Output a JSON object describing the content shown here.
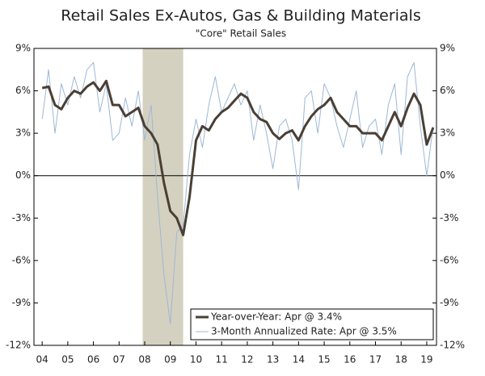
{
  "chart_data": {
    "type": "line",
    "title": "Retail Sales Ex-Autos, Gas & Building Materials",
    "subtitle": "\"Core\" Retail Sales",
    "x": [
      2004,
      2004.25,
      2004.5,
      2004.75,
      2005,
      2005.25,
      2005.5,
      2005.75,
      2006,
      2006.25,
      2006.5,
      2006.75,
      2007,
      2007.25,
      2007.5,
      2007.75,
      2008,
      2008.25,
      2008.5,
      2008.75,
      2009,
      2009.25,
      2009.5,
      2009.75,
      2010,
      2010.25,
      2010.5,
      2010.75,
      2011,
      2011.25,
      2011.5,
      2011.75,
      2012,
      2012.25,
      2012.5,
      2012.75,
      2013,
      2013.25,
      2013.5,
      2013.75,
      2014,
      2014.25,
      2014.5,
      2014.75,
      2015,
      2015.25,
      2015.5,
      2015.75,
      2016,
      2016.25,
      2016.5,
      2016.75,
      2017,
      2017.25,
      2017.5,
      2017.75,
      2018,
      2018.25,
      2018.5,
      2018.75,
      2019,
      2019.25
    ],
    "series": [
      {
        "name": "3-Month Annualized Rate: Apr @ 3.5%",
        "color": "#9db8d6",
        "width": 1,
        "values": [
          4.0,
          7.5,
          3.0,
          6.5,
          5.0,
          7.0,
          5.5,
          7.5,
          8.0,
          4.5,
          6.5,
          2.5,
          3.0,
          5.5,
          3.5,
          6.0,
          2.5,
          5.0,
          -1.5,
          -7.0,
          -10.5,
          -4.0,
          -3.5,
          1.5,
          4.0,
          2.0,
          5.0,
          7.0,
          4.5,
          5.5,
          6.5,
          5.0,
          6.0,
          2.5,
          5.0,
          3.0,
          0.5,
          3.5,
          4.0,
          2.5,
          -1.0,
          5.5,
          6.0,
          3.0,
          6.5,
          5.5,
          3.5,
          2.0,
          4.0,
          6.0,
          2.0,
          3.5,
          4.0,
          1.5,
          5.0,
          6.5,
          1.5,
          7.0,
          8.0,
          3.5,
          0.0,
          3.5
        ]
      },
      {
        "name": "Year-over-Year: Apr @ 3.4%",
        "color": "#4a3f35",
        "width": 3,
        "values": [
          6.2,
          6.3,
          5.0,
          4.7,
          5.5,
          6.0,
          5.8,
          6.3,
          6.6,
          6.0,
          6.7,
          5.0,
          5.0,
          4.2,
          4.5,
          4.8,
          3.5,
          3.0,
          2.2,
          -0.5,
          -2.5,
          -3.0,
          -4.2,
          -1.5,
          2.5,
          3.5,
          3.2,
          4.0,
          4.5,
          4.8,
          5.3,
          5.8,
          5.5,
          4.5,
          4.0,
          3.8,
          3.0,
          2.6,
          3.0,
          3.2,
          2.5,
          3.5,
          4.2,
          4.7,
          5.0,
          5.5,
          4.5,
          4.0,
          3.5,
          3.5,
          3.0,
          3.0,
          3.0,
          2.5,
          3.5,
          4.5,
          3.5,
          4.8,
          5.8,
          5.0,
          2.2,
          3.4
        ]
      }
    ],
    "legend_order": [
      1,
      0
    ],
    "recession": {
      "x": [
        2007.92,
        2009.5
      ],
      "color": "#d5d1c1"
    },
    "xlim": [
      2003.68,
      2019.38
    ],
    "xticks": [
      {
        "value": 2004,
        "label": "04"
      },
      {
        "value": 2005,
        "label": "05"
      },
      {
        "value": 2006,
        "label": "06"
      },
      {
        "value": 2007,
        "label": "07"
      },
      {
        "value": 2008,
        "label": "08"
      },
      {
        "value": 2009,
        "label": "09"
      },
      {
        "value": 2010,
        "label": "10"
      },
      {
        "value": 2011,
        "label": "11"
      },
      {
        "value": 2012,
        "label": "12"
      },
      {
        "value": 2013,
        "label": "13"
      },
      {
        "value": 2014,
        "label": "14"
      },
      {
        "value": 2015,
        "label": "15"
      },
      {
        "value": 2016,
        "label": "16"
      },
      {
        "value": 2017,
        "label": "17"
      },
      {
        "value": 2018,
        "label": "18"
      },
      {
        "value": 2019,
        "label": "19"
      }
    ],
    "ylim": [
      -12,
      9
    ],
    "yticks": [
      {
        "value": 9,
        "label": "9%"
      },
      {
        "value": 6,
        "label": "6%"
      },
      {
        "value": 3,
        "label": "3%"
      },
      {
        "value": 0,
        "label": "0%"
      },
      {
        "value": -3,
        "label": "-3%"
      },
      {
        "value": -6,
        "label": "-6%"
      },
      {
        "value": -9,
        "label": "-9%"
      },
      {
        "value": -12,
        "label": "-12%"
      }
    ],
    "y2ticks": [
      {
        "value": 9,
        "label": "9%"
      },
      {
        "value": 6,
        "label": "6%"
      },
      {
        "value": 3,
        "label": "3%"
      },
      {
        "value": 0,
        "label": "0%"
      },
      {
        "value": -3,
        "label": "-3%"
      },
      {
        "value": -6,
        "label": "-6%"
      },
      {
        "value": -9,
        "label": "-9%"
      },
      {
        "value": -12,
        "label": "-12%"
      }
    ]
  }
}
